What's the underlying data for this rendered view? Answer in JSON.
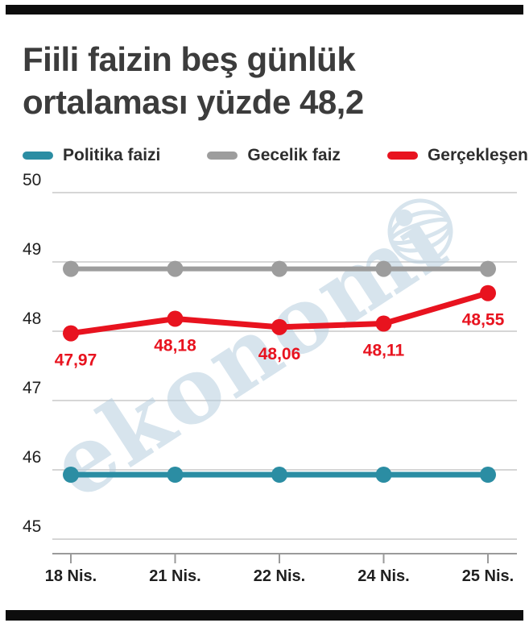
{
  "page": {
    "title_line1": "Fiili faizin beş günlük",
    "title_line2": "ortalaması yüzde 48,2"
  },
  "legend": {
    "items": [
      {
        "label": "Politika faizi",
        "color": "#2b8da3"
      },
      {
        "label": "Gecelik faiz",
        "color": "#9d9d9d"
      },
      {
        "label": "Gerçekleşen",
        "color": "#e8131f"
      }
    ]
  },
  "watermark": {
    "text": "ekonomi",
    "color": "#b7cfdf"
  },
  "chart_data": {
    "type": "line",
    "title": "Fiili faizin beş günlük ortalaması yüzde 48,2",
    "x_labels": [
      "18 Nis.",
      "21 Nis.",
      "22 Nis.",
      "24 Nis.",
      "25 Nis."
    ],
    "y_ticks": [
      50,
      49,
      48,
      47,
      46,
      45
    ],
    "ylim": [
      45,
      50
    ],
    "grid": true,
    "legend_position": "top",
    "series": [
      {
        "name": "Gecelik faiz",
        "color": "#9d9d9d",
        "values": [
          48.9,
          48.9,
          48.9,
          48.9,
          48.9
        ]
      },
      {
        "name": "Politika faizi",
        "color": "#2b8da3",
        "values": [
          45.93,
          45.93,
          45.93,
          45.93,
          45.93
        ]
      },
      {
        "name": "Gerçekleşen",
        "color": "#e8131f",
        "values": [
          47.97,
          48.18,
          48.06,
          48.11,
          48.55
        ],
        "point_labels": [
          "47,97",
          "48,18",
          "48,06",
          "48,11",
          "48,55"
        ],
        "label_dx": [
          6,
          0,
          0,
          0,
          -6
        ]
      }
    ]
  }
}
